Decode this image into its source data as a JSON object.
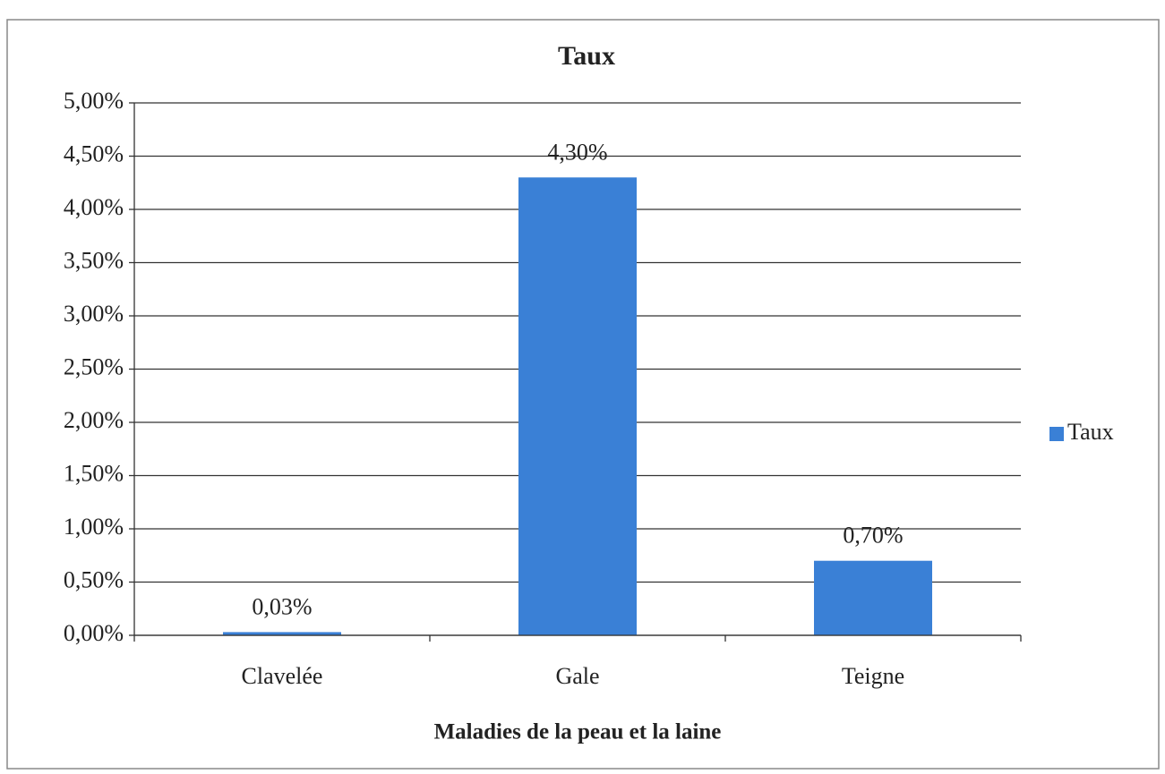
{
  "chart_data": {
    "type": "bar",
    "title": "Taux",
    "x_label": "Maladies de la peau et la laine",
    "categories": [
      "Clavelée",
      "Gale",
      "Teigne"
    ],
    "series": [
      {
        "name": "Taux",
        "color": "#3a80d6",
        "values": [
          0.03,
          4.3,
          0.7
        ],
        "value_labels": [
          "0,03%",
          "4,30%",
          "0,70%"
        ]
      }
    ],
    "ylim": [
      0,
      5
    ],
    "yticks": [
      {
        "value": 0,
        "label": "0,00%"
      },
      {
        "value": 0.5,
        "label": "0,50%"
      },
      {
        "value": 1,
        "label": "1,00%"
      },
      {
        "value": 1.5,
        "label": "1,50%"
      },
      {
        "value": 2,
        "label": "2,00%"
      },
      {
        "value": 2.5,
        "label": "2,50%"
      },
      {
        "value": 3,
        "label": "3,00%"
      },
      {
        "value": 3.5,
        "label": "3,50%"
      },
      {
        "value": 4,
        "label": "4,00%"
      },
      {
        "value": 4.5,
        "label": "4,50%"
      },
      {
        "value": 5,
        "label": "5,00%"
      }
    ],
    "grid": true,
    "legend": "right"
  }
}
